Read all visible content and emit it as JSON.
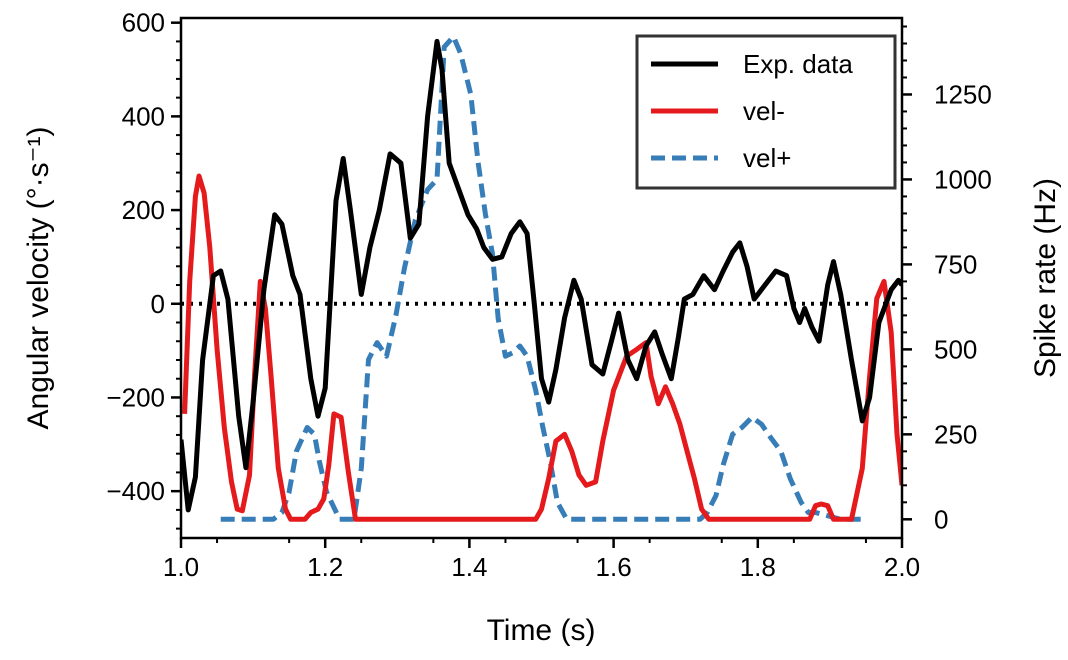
{
  "chart_data": {
    "type": "line",
    "title": "",
    "xlabel": "Time (s)",
    "ylabel_left": "Angular velocity (°·s⁻¹)",
    "ylabel_right": "Spike rate (Hz)",
    "xlim": [
      1.0,
      2.0
    ],
    "ylim_left": [
      -500,
      610
    ],
    "ylim_right": [
      -55,
      1475
    ],
    "xticks": [
      "1.0",
      "1.2",
      "1.4",
      "1.6",
      "1.8",
      "2.0"
    ],
    "yticks_left": [
      "600",
      "400",
      "200",
      "0",
      "−200",
      "−400"
    ],
    "yticks_right": [
      "1250",
      "1000",
      "750",
      "500",
      "250",
      "0"
    ],
    "legend_position": "top-right",
    "reference_line": {
      "y": 0,
      "style": "dotted",
      "color": "#000000"
    },
    "series": [
      {
        "name": "Exp. data",
        "axis": "left",
        "color": "#000000",
        "style": "solid",
        "points": [
          [
            1.0,
            -290
          ],
          [
            1.01,
            -440
          ],
          [
            1.02,
            -370
          ],
          [
            1.03,
            -120
          ],
          [
            1.045,
            60
          ],
          [
            1.055,
            70
          ],
          [
            1.065,
            10
          ],
          [
            1.08,
            -240
          ],
          [
            1.09,
            -350
          ],
          [
            1.1,
            -210
          ],
          [
            1.115,
            30
          ],
          [
            1.13,
            190
          ],
          [
            1.14,
            170
          ],
          [
            1.155,
            60
          ],
          [
            1.165,
            20
          ],
          [
            1.18,
            -160
          ],
          [
            1.19,
            -240
          ],
          [
            1.2,
            -180
          ],
          [
            1.215,
            220
          ],
          [
            1.225,
            310
          ],
          [
            1.235,
            200
          ],
          [
            1.25,
            20
          ],
          [
            1.262,
            120
          ],
          [
            1.275,
            200
          ],
          [
            1.29,
            320
          ],
          [
            1.305,
            300
          ],
          [
            1.318,
            140
          ],
          [
            1.33,
            170
          ],
          [
            1.342,
            400
          ],
          [
            1.355,
            560
          ],
          [
            1.362,
            500
          ],
          [
            1.372,
            300
          ],
          [
            1.385,
            245
          ],
          [
            1.398,
            190
          ],
          [
            1.41,
            160
          ],
          [
            1.42,
            120
          ],
          [
            1.432,
            95
          ],
          [
            1.445,
            100
          ],
          [
            1.458,
            150
          ],
          [
            1.47,
            175
          ],
          [
            1.48,
            150
          ],
          [
            1.49,
            0
          ],
          [
            1.5,
            -160
          ],
          [
            1.51,
            -210
          ],
          [
            1.52,
            -140
          ],
          [
            1.532,
            -30
          ],
          [
            1.545,
            50
          ],
          [
            1.555,
            10
          ],
          [
            1.57,
            -130
          ],
          [
            1.585,
            -150
          ],
          [
            1.597,
            -80
          ],
          [
            1.607,
            -20
          ],
          [
            1.62,
            -120
          ],
          [
            1.632,
            -160
          ],
          [
            1.645,
            -90
          ],
          [
            1.657,
            -60
          ],
          [
            1.668,
            -110
          ],
          [
            1.68,
            -160
          ],
          [
            1.69,
            -70
          ],
          [
            1.698,
            10
          ],
          [
            1.71,
            20
          ],
          [
            1.725,
            60
          ],
          [
            1.74,
            30
          ],
          [
            1.752,
            70
          ],
          [
            1.765,
            110
          ],
          [
            1.775,
            130
          ],
          [
            1.785,
            80
          ],
          [
            1.795,
            10
          ],
          [
            1.81,
            40
          ],
          [
            1.825,
            70
          ],
          [
            1.84,
            60
          ],
          [
            1.85,
            -10
          ],
          [
            1.858,
            -40
          ],
          [
            1.865,
            -10
          ],
          [
            1.875,
            -50
          ],
          [
            1.885,
            -80
          ],
          [
            1.897,
            40
          ],
          [
            1.905,
            90
          ],
          [
            1.915,
            20
          ],
          [
            1.93,
            -120
          ],
          [
            1.945,
            -250
          ],
          [
            1.955,
            -200
          ],
          [
            1.968,
            -40
          ],
          [
            1.985,
            30
          ],
          [
            1.995,
            50
          ],
          [
            2.0,
            40
          ]
        ]
      },
      {
        "name": "vel-",
        "axis": "right",
        "color": "#e41a1c",
        "style": "solid",
        "points": [
          [
            1.005,
            310
          ],
          [
            1.012,
            700
          ],
          [
            1.02,
            950
          ],
          [
            1.025,
            1010
          ],
          [
            1.032,
            960
          ],
          [
            1.04,
            800
          ],
          [
            1.05,
            500
          ],
          [
            1.06,
            270
          ],
          [
            1.07,
            110
          ],
          [
            1.078,
            30
          ],
          [
            1.085,
            25
          ],
          [
            1.095,
            130
          ],
          [
            1.102,
            420
          ],
          [
            1.11,
            700
          ],
          [
            1.117,
            620
          ],
          [
            1.125,
            420
          ],
          [
            1.135,
            150
          ],
          [
            1.145,
            30
          ],
          [
            1.152,
            0
          ],
          [
            1.172,
            0
          ],
          [
            1.18,
            20
          ],
          [
            1.19,
            30
          ],
          [
            1.198,
            60
          ],
          [
            1.205,
            160
          ],
          [
            1.212,
            310
          ],
          [
            1.222,
            300
          ],
          [
            1.232,
            140
          ],
          [
            1.242,
            0
          ],
          [
            1.492,
            0
          ],
          [
            1.5,
            30
          ],
          [
            1.51,
            120
          ],
          [
            1.52,
            230
          ],
          [
            1.532,
            250
          ],
          [
            1.542,
            200
          ],
          [
            1.552,
            130
          ],
          [
            1.562,
            100
          ],
          [
            1.575,
            110
          ],
          [
            1.585,
            230
          ],
          [
            1.6,
            380
          ],
          [
            1.618,
            480
          ],
          [
            1.632,
            500
          ],
          [
            1.645,
            520
          ],
          [
            1.652,
            420
          ],
          [
            1.662,
            340
          ],
          [
            1.672,
            390
          ],
          [
            1.682,
            340
          ],
          [
            1.692,
            280
          ],
          [
            1.702,
            200
          ],
          [
            1.712,
            120
          ],
          [
            1.722,
            30
          ],
          [
            1.732,
            0
          ],
          [
            1.752,
            0
          ],
          [
            1.872,
            0
          ],
          [
            1.88,
            40
          ],
          [
            1.888,
            45
          ],
          [
            1.897,
            40
          ],
          [
            1.905,
            0
          ],
          [
            1.91,
            0
          ],
          [
            1.93,
            0
          ],
          [
            1.945,
            150
          ],
          [
            1.955,
            420
          ],
          [
            1.965,
            650
          ],
          [
            1.975,
            700
          ],
          [
            1.985,
            550
          ],
          [
            1.993,
            250
          ],
          [
            2.0,
            100
          ]
        ]
      },
      {
        "name": "vel+",
        "axis": "right",
        "color": "#377eb8",
        "style": "dashed",
        "points": [
          [
            1.055,
            0
          ],
          [
            1.085,
            0
          ],
          [
            1.128,
            0
          ],
          [
            1.14,
            20
          ],
          [
            1.15,
            80
          ],
          [
            1.16,
            200
          ],
          [
            1.175,
            270
          ],
          [
            1.185,
            250
          ],
          [
            1.192,
            170
          ],
          [
            1.202,
            80
          ],
          [
            1.22,
            0
          ],
          [
            1.24,
            0
          ],
          [
            1.25,
            150
          ],
          [
            1.26,
            470
          ],
          [
            1.272,
            520
          ],
          [
            1.285,
            480
          ],
          [
            1.298,
            600
          ],
          [
            1.31,
            740
          ],
          [
            1.325,
            880
          ],
          [
            1.342,
            970
          ],
          [
            1.355,
            1000
          ],
          [
            1.365,
            1390
          ],
          [
            1.378,
            1420
          ],
          [
            1.388,
            1370
          ],
          [
            1.402,
            1250
          ],
          [
            1.412,
            1050
          ],
          [
            1.422,
            900
          ],
          [
            1.432,
            780
          ],
          [
            1.44,
            590
          ],
          [
            1.45,
            480
          ],
          [
            1.46,
            490
          ],
          [
            1.47,
            510
          ],
          [
            1.48,
            480
          ],
          [
            1.492,
            380
          ],
          [
            1.502,
            270
          ],
          [
            1.512,
            170
          ],
          [
            1.522,
            50
          ],
          [
            1.535,
            0
          ],
          [
            1.58,
            0
          ],
          [
            1.65,
            0
          ],
          [
            1.69,
            0
          ],
          [
            1.72,
            0
          ],
          [
            1.73,
            20
          ],
          [
            1.742,
            70
          ],
          [
            1.752,
            160
          ],
          [
            1.765,
            250
          ],
          [
            1.778,
            270
          ],
          [
            1.792,
            300
          ],
          [
            1.805,
            280
          ],
          [
            1.818,
            240
          ],
          [
            1.832,
            200
          ],
          [
            1.845,
            120
          ],
          [
            1.86,
            50
          ],
          [
            1.87,
            20
          ],
          [
            1.88,
            20
          ],
          [
            1.915,
            0
          ],
          [
            1.945,
            0
          ]
        ]
      }
    ]
  }
}
